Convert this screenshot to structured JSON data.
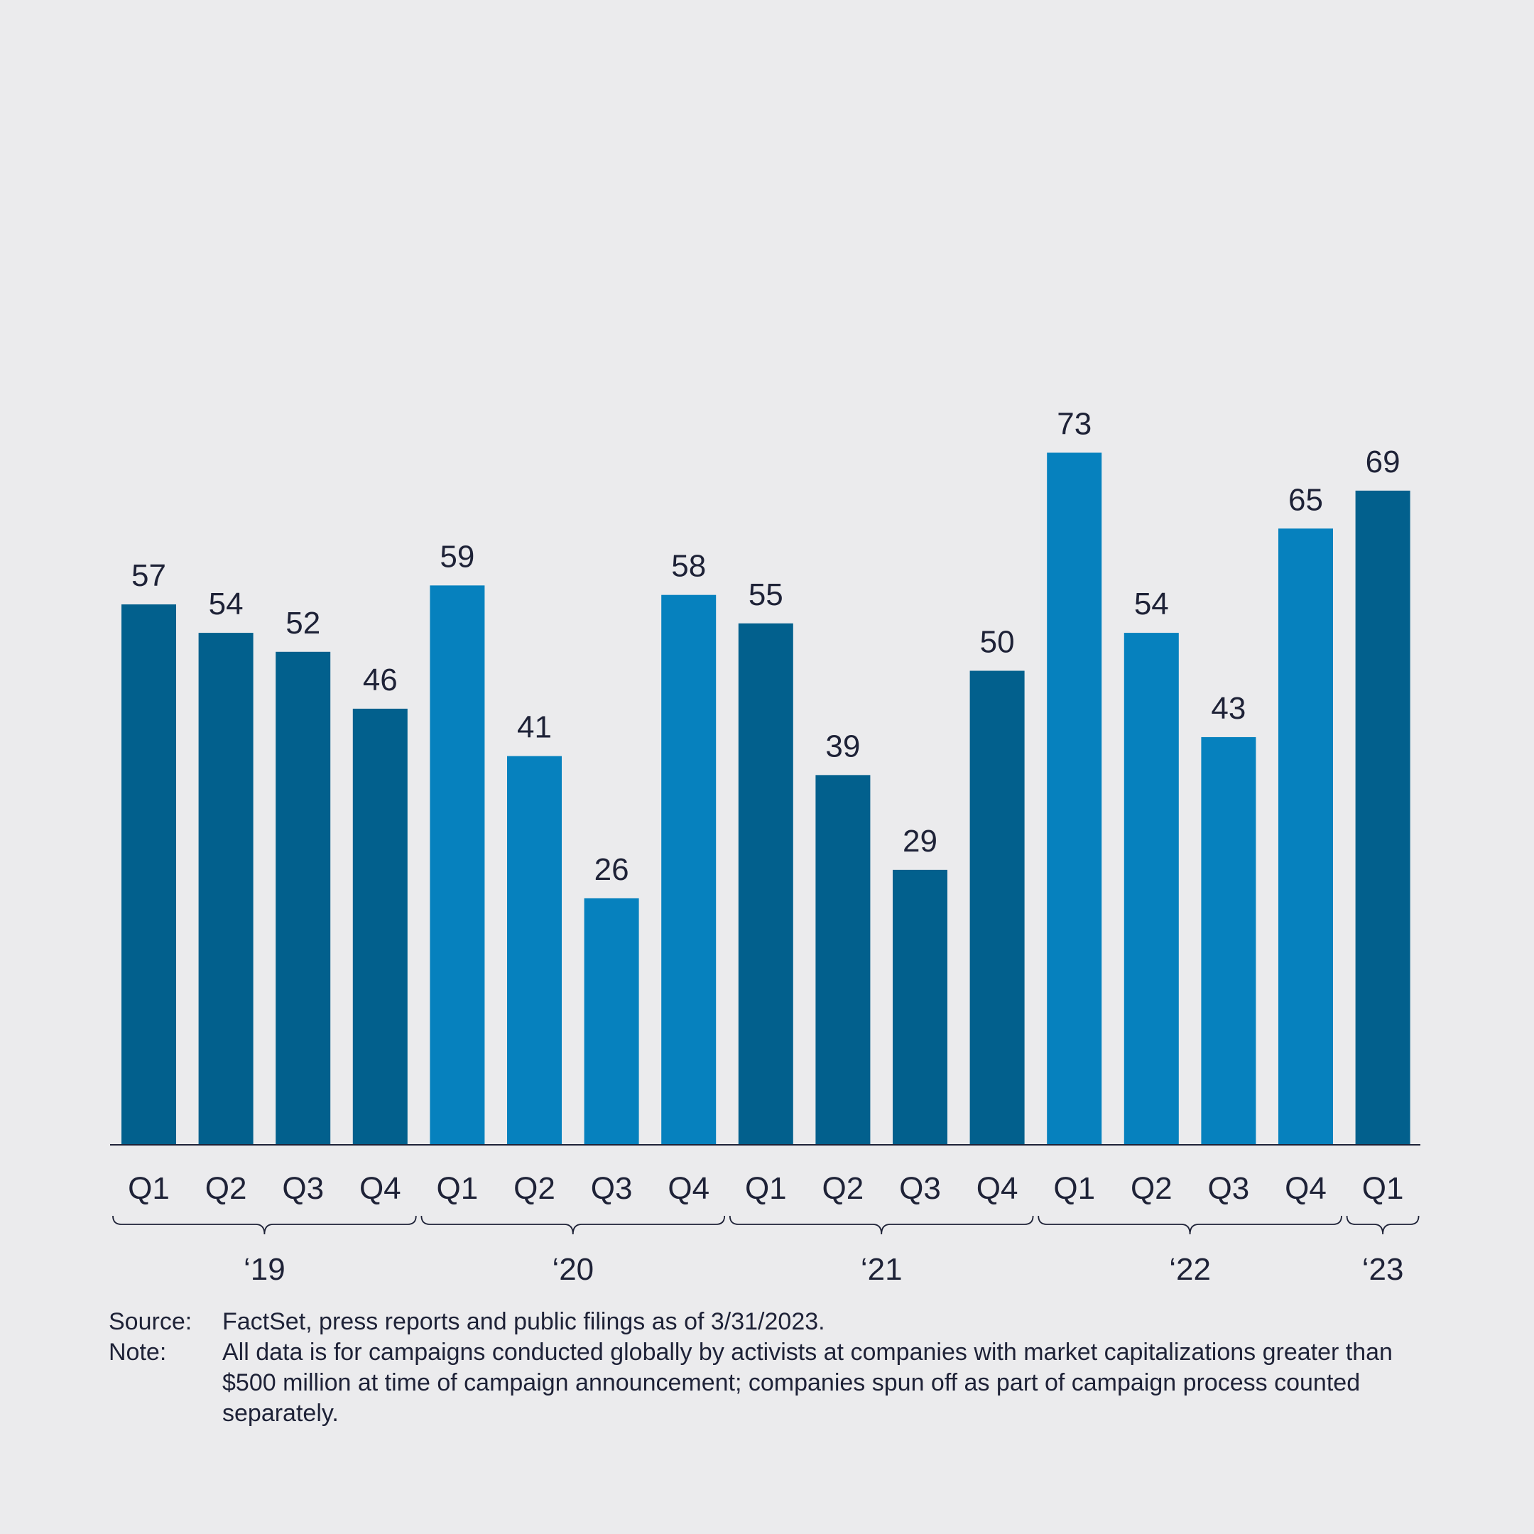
{
  "colors": {
    "background": "#ebebed",
    "bar_dark": "#02608d",
    "bar_light": "#0681be",
    "text": "#1e2237",
    "axis": "#1e2237"
  },
  "chart_data": {
    "type": "bar",
    "categories": [
      "Q1",
      "Q2",
      "Q3",
      "Q4",
      "Q1",
      "Q2",
      "Q3",
      "Q4",
      "Q1",
      "Q2",
      "Q3",
      "Q4",
      "Q1",
      "Q2",
      "Q3",
      "Q4",
      "Q1"
    ],
    "years": [
      "'19",
      "'19",
      "'19",
      "'19",
      "'20",
      "'20",
      "'20",
      "'20",
      "'21",
      "'21",
      "'21",
      "'21",
      "'22",
      "'22",
      "'22",
      "'22",
      "'23"
    ],
    "values": [
      57,
      54,
      52,
      46,
      59,
      41,
      26,
      58,
      55,
      39,
      29,
      50,
      73,
      54,
      43,
      65,
      69
    ],
    "bar_colors": [
      "dark",
      "dark",
      "dark",
      "dark",
      "light",
      "light",
      "light",
      "light",
      "dark",
      "dark",
      "dark",
      "dark",
      "light",
      "light",
      "light",
      "light",
      "dark"
    ],
    "year_groups": [
      {
        "label": "‘19",
        "count": 4
      },
      {
        "label": "‘20",
        "count": 4
      },
      {
        "label": "‘21",
        "count": 4
      },
      {
        "label": "‘22",
        "count": 4
      },
      {
        "label": "‘23",
        "count": 1
      }
    ],
    "data_labels": true,
    "ylim": [
      0,
      73
    ],
    "grid": false,
    "legend": "none"
  },
  "footnotes": {
    "source_label": "Source:",
    "source_text": "FactSet, press reports and public filings as of 3/31/2023.",
    "note_label": "Note:",
    "note_text": "All data is for campaigns conducted globally by activists at companies with market capitalizations greater than $500 million at time of campaign announcement; companies spun off as part of campaign process counted separately."
  }
}
